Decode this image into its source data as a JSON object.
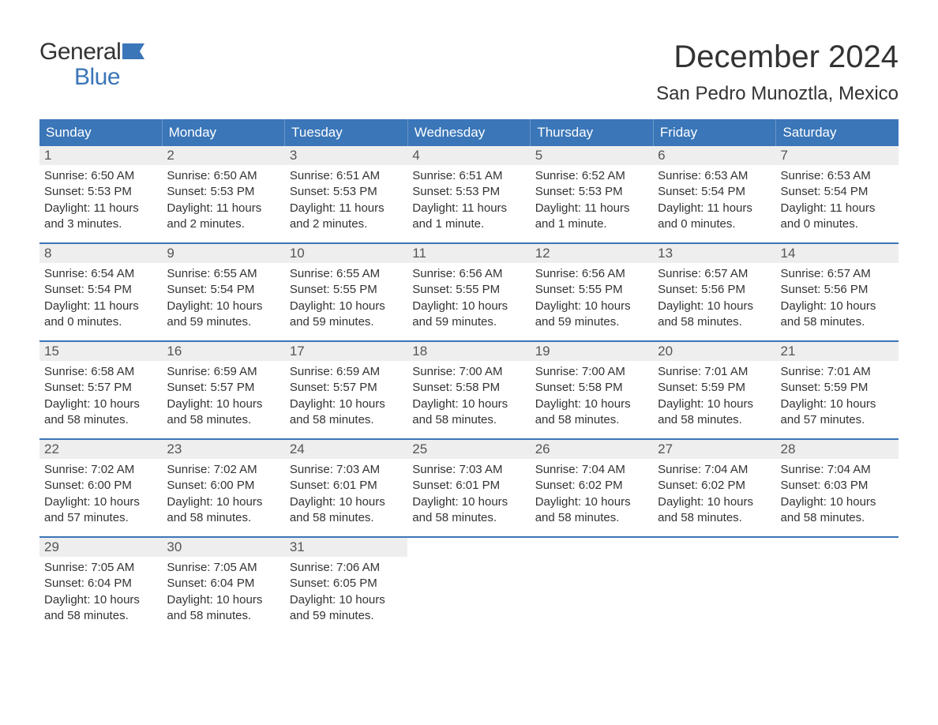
{
  "logo": {
    "general": "General",
    "blue": "Blue"
  },
  "colors": {
    "header_bg": "#3a76b8",
    "header_text": "#ffffff",
    "daynum_bg": "#eeeeee",
    "rule": "#3a76b8",
    "body_text": "#333333",
    "logo_blue": "#3a76b8"
  },
  "title": "December 2024",
  "location": "San Pedro Munoztla, Mexico",
  "day_headers": [
    "Sunday",
    "Monday",
    "Tuesday",
    "Wednesday",
    "Thursday",
    "Friday",
    "Saturday"
  ],
  "weeks": [
    [
      {
        "n": "1",
        "sunrise": "Sunrise: 6:50 AM",
        "sunset": "Sunset: 5:53 PM",
        "day1": "Daylight: 11 hours",
        "day2": "and 3 minutes."
      },
      {
        "n": "2",
        "sunrise": "Sunrise: 6:50 AM",
        "sunset": "Sunset: 5:53 PM",
        "day1": "Daylight: 11 hours",
        "day2": "and 2 minutes."
      },
      {
        "n": "3",
        "sunrise": "Sunrise: 6:51 AM",
        "sunset": "Sunset: 5:53 PM",
        "day1": "Daylight: 11 hours",
        "day2": "and 2 minutes."
      },
      {
        "n": "4",
        "sunrise": "Sunrise: 6:51 AM",
        "sunset": "Sunset: 5:53 PM",
        "day1": "Daylight: 11 hours",
        "day2": "and 1 minute."
      },
      {
        "n": "5",
        "sunrise": "Sunrise: 6:52 AM",
        "sunset": "Sunset: 5:53 PM",
        "day1": "Daylight: 11 hours",
        "day2": "and 1 minute."
      },
      {
        "n": "6",
        "sunrise": "Sunrise: 6:53 AM",
        "sunset": "Sunset: 5:54 PM",
        "day1": "Daylight: 11 hours",
        "day2": "and 0 minutes."
      },
      {
        "n": "7",
        "sunrise": "Sunrise: 6:53 AM",
        "sunset": "Sunset: 5:54 PM",
        "day1": "Daylight: 11 hours",
        "day2": "and 0 minutes."
      }
    ],
    [
      {
        "n": "8",
        "sunrise": "Sunrise: 6:54 AM",
        "sunset": "Sunset: 5:54 PM",
        "day1": "Daylight: 11 hours",
        "day2": "and 0 minutes."
      },
      {
        "n": "9",
        "sunrise": "Sunrise: 6:55 AM",
        "sunset": "Sunset: 5:54 PM",
        "day1": "Daylight: 10 hours",
        "day2": "and 59 minutes."
      },
      {
        "n": "10",
        "sunrise": "Sunrise: 6:55 AM",
        "sunset": "Sunset: 5:55 PM",
        "day1": "Daylight: 10 hours",
        "day2": "and 59 minutes."
      },
      {
        "n": "11",
        "sunrise": "Sunrise: 6:56 AM",
        "sunset": "Sunset: 5:55 PM",
        "day1": "Daylight: 10 hours",
        "day2": "and 59 minutes."
      },
      {
        "n": "12",
        "sunrise": "Sunrise: 6:56 AM",
        "sunset": "Sunset: 5:55 PM",
        "day1": "Daylight: 10 hours",
        "day2": "and 59 minutes."
      },
      {
        "n": "13",
        "sunrise": "Sunrise: 6:57 AM",
        "sunset": "Sunset: 5:56 PM",
        "day1": "Daylight: 10 hours",
        "day2": "and 58 minutes."
      },
      {
        "n": "14",
        "sunrise": "Sunrise: 6:57 AM",
        "sunset": "Sunset: 5:56 PM",
        "day1": "Daylight: 10 hours",
        "day2": "and 58 minutes."
      }
    ],
    [
      {
        "n": "15",
        "sunrise": "Sunrise: 6:58 AM",
        "sunset": "Sunset: 5:57 PM",
        "day1": "Daylight: 10 hours",
        "day2": "and 58 minutes."
      },
      {
        "n": "16",
        "sunrise": "Sunrise: 6:59 AM",
        "sunset": "Sunset: 5:57 PM",
        "day1": "Daylight: 10 hours",
        "day2": "and 58 minutes."
      },
      {
        "n": "17",
        "sunrise": "Sunrise: 6:59 AM",
        "sunset": "Sunset: 5:57 PM",
        "day1": "Daylight: 10 hours",
        "day2": "and 58 minutes."
      },
      {
        "n": "18",
        "sunrise": "Sunrise: 7:00 AM",
        "sunset": "Sunset: 5:58 PM",
        "day1": "Daylight: 10 hours",
        "day2": "and 58 minutes."
      },
      {
        "n": "19",
        "sunrise": "Sunrise: 7:00 AM",
        "sunset": "Sunset: 5:58 PM",
        "day1": "Daylight: 10 hours",
        "day2": "and 58 minutes."
      },
      {
        "n": "20",
        "sunrise": "Sunrise: 7:01 AM",
        "sunset": "Sunset: 5:59 PM",
        "day1": "Daylight: 10 hours",
        "day2": "and 58 minutes."
      },
      {
        "n": "21",
        "sunrise": "Sunrise: 7:01 AM",
        "sunset": "Sunset: 5:59 PM",
        "day1": "Daylight: 10 hours",
        "day2": "and 57 minutes."
      }
    ],
    [
      {
        "n": "22",
        "sunrise": "Sunrise: 7:02 AM",
        "sunset": "Sunset: 6:00 PM",
        "day1": "Daylight: 10 hours",
        "day2": "and 57 minutes."
      },
      {
        "n": "23",
        "sunrise": "Sunrise: 7:02 AM",
        "sunset": "Sunset: 6:00 PM",
        "day1": "Daylight: 10 hours",
        "day2": "and 58 minutes."
      },
      {
        "n": "24",
        "sunrise": "Sunrise: 7:03 AM",
        "sunset": "Sunset: 6:01 PM",
        "day1": "Daylight: 10 hours",
        "day2": "and 58 minutes."
      },
      {
        "n": "25",
        "sunrise": "Sunrise: 7:03 AM",
        "sunset": "Sunset: 6:01 PM",
        "day1": "Daylight: 10 hours",
        "day2": "and 58 minutes."
      },
      {
        "n": "26",
        "sunrise": "Sunrise: 7:04 AM",
        "sunset": "Sunset: 6:02 PM",
        "day1": "Daylight: 10 hours",
        "day2": "and 58 minutes."
      },
      {
        "n": "27",
        "sunrise": "Sunrise: 7:04 AM",
        "sunset": "Sunset: 6:02 PM",
        "day1": "Daylight: 10 hours",
        "day2": "and 58 minutes."
      },
      {
        "n": "28",
        "sunrise": "Sunrise: 7:04 AM",
        "sunset": "Sunset: 6:03 PM",
        "day1": "Daylight: 10 hours",
        "day2": "and 58 minutes."
      }
    ],
    [
      {
        "n": "29",
        "sunrise": "Sunrise: 7:05 AM",
        "sunset": "Sunset: 6:04 PM",
        "day1": "Daylight: 10 hours",
        "day2": "and 58 minutes."
      },
      {
        "n": "30",
        "sunrise": "Sunrise: 7:05 AM",
        "sunset": "Sunset: 6:04 PM",
        "day1": "Daylight: 10 hours",
        "day2": "and 58 minutes."
      },
      {
        "n": "31",
        "sunrise": "Sunrise: 7:06 AM",
        "sunset": "Sunset: 6:05 PM",
        "day1": "Daylight: 10 hours",
        "day2": "and 59 minutes."
      },
      null,
      null,
      null,
      null
    ]
  ]
}
